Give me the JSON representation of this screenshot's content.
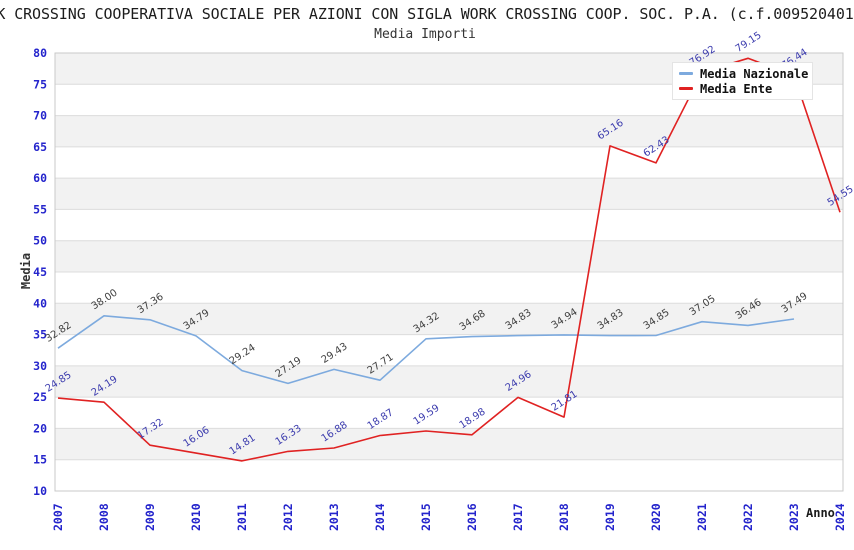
{
  "header": {
    "title": "K CROSSING COOPERATIVA SOCIALE PER AZIONI CON SIGLA WORK CROSSING COOP. SOC. P.A. (c.f.009520401",
    "subtitle": "Media Importi"
  },
  "chart_data": {
    "type": "line",
    "title": "Media Importi",
    "xlabel": "Anno",
    "ylabel": "Media",
    "categories": [
      "2007",
      "2008",
      "2009",
      "2010",
      "2011",
      "2012",
      "2013",
      "2014",
      "2015",
      "2016",
      "2017",
      "2018",
      "2019",
      "2020",
      "2021",
      "2022",
      "2023",
      "2024"
    ],
    "series": [
      {
        "name": "Media Nazionale",
        "color": "#7daade",
        "label_color": "#3f3f3f",
        "values": [
          32.82,
          38.0,
          37.36,
          34.79,
          29.24,
          27.19,
          29.43,
          27.71,
          34.32,
          34.68,
          34.83,
          34.94,
          34.83,
          34.85,
          37.05,
          36.46,
          37.49,
          null
        ]
      },
      {
        "name": "Media Ente",
        "color": "#e02222",
        "label_color": "#3c3cae",
        "values": [
          24.85,
          24.19,
          17.32,
          16.06,
          14.81,
          16.33,
          16.88,
          18.87,
          19.59,
          18.98,
          24.96,
          21.81,
          65.16,
          62.43,
          76.92,
          79.15,
          76.44,
          54.55
        ]
      }
    ],
    "ylim": [
      10,
      80
    ],
    "y_ticks": [
      10,
      15,
      20,
      25,
      30,
      35,
      40,
      45,
      50,
      55,
      60,
      65,
      70,
      75,
      80
    ],
    "grid": true,
    "legend_position": "top-right",
    "band_colors": [
      "#f2f2f2",
      "#ffffff"
    ],
    "tick_color": "#2424cc",
    "grid_color": "#dcdcdc",
    "border_color": "#c9c9c9"
  }
}
